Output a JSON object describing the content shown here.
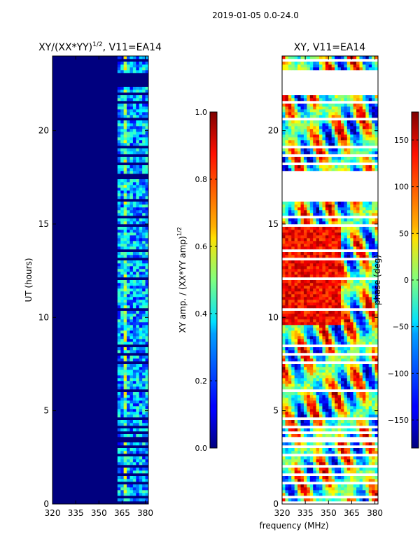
{
  "suptitle": "2019-01-05 0.0-24.0",
  "colors": {
    "background": "#00007f",
    "axis": "#000000",
    "gap": "#ffffff"
  },
  "chart_data": [
    {
      "type": "heatmap",
      "title": "XY/(XX*YY)",
      "title_superscript": "1/2",
      "title_suffix": ", V11=EA14",
      "xlabel": "",
      "ylabel": "UT (hours)",
      "x_range": [
        320,
        382
      ],
      "x_ticks": [
        320,
        335,
        350,
        365,
        380
      ],
      "y_range": [
        0,
        24
      ],
      "y_ticks": [
        0,
        5,
        10,
        15,
        20
      ],
      "colorbar": {
        "label": "XY amp. / (XX*YY amp)",
        "label_superscript": "1/2",
        "range": [
          0.0,
          1.0
        ],
        "ticks": [
          "0.0",
          "0.2",
          "0.4",
          "0.6",
          "0.8",
          "1.0"
        ],
        "colormap": "jet"
      }
    },
    {
      "type": "heatmap",
      "title": "XY, V11=EA14",
      "xlabel": "frequency (MHz)",
      "ylabel": "",
      "x_range": [
        320,
        382
      ],
      "x_ticks": [
        320,
        335,
        350,
        365,
        380
      ],
      "y_range": [
        0,
        24
      ],
      "y_ticks": [
        0,
        5,
        10,
        15,
        20
      ],
      "colorbar": {
        "label": "phase (deg)",
        "range": [
          -180,
          180
        ],
        "ticks": [
          -150,
          -100,
          -50,
          0,
          50,
          100,
          150
        ],
        "colormap": "jet"
      }
    }
  ]
}
